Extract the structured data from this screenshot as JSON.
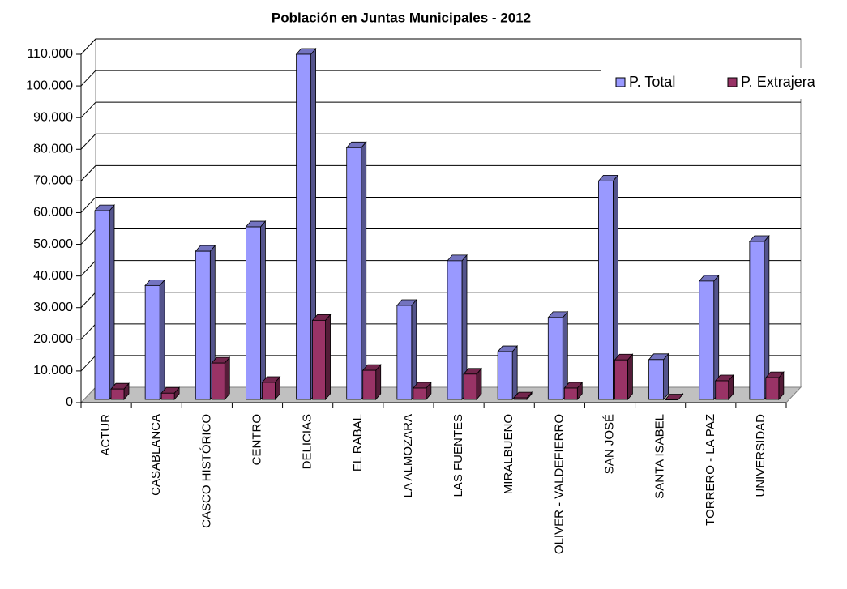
{
  "chart_data": {
    "type": "bar3d",
    "title": "Población en Juntas Municipales - 2012",
    "categories": [
      "ACTUR",
      "CASABLANCA",
      "CASCO HISTÓRICO",
      "CENTRO",
      "DELICIAS",
      "EL RABAL",
      "LA ALMOZARA",
      "LAS FUENTES",
      "MIRALBUENO",
      "OLIVER - VALDEFIERRO",
      "SAN JOSÉ",
      "SANTA ISABEL",
      "TORRERO - LA PAZ",
      "UNIVERSIDAD"
    ],
    "series": [
      {
        "name": "P. Total",
        "color": "#9999ff",
        "values": [
          60600,
          37000,
          47800,
          55500,
          110000,
          80500,
          30700,
          44800,
          16100,
          26900,
          70000,
          13600,
          38400,
          50900
        ]
      },
      {
        "name": "P. Extrajera",
        "color": "#993366",
        "values": [
          4300,
          3000,
          12500,
          6400,
          26000,
          10200,
          4600,
          9000,
          1500,
          4600,
          13500,
          900,
          6900,
          7900
        ]
      }
    ],
    "ylim": [
      0,
      110000
    ],
    "yticks": [
      0,
      {
        "value": 10000,
        "label": "10.000"
      },
      {
        "value": 20000,
        "label": "20.000"
      },
      {
        "value": 30000,
        "label": "30.000"
      },
      {
        "value": 40000,
        "label": "40.000"
      },
      {
        "value": 50000,
        "label": "50.000"
      },
      {
        "value": 60000,
        "label": "60.000"
      },
      {
        "value": 70000,
        "label": "70.000"
      },
      {
        "value": 80000,
        "label": "80.000"
      },
      {
        "value": 90000,
        "label": "90.000"
      },
      {
        "value": 100000,
        "label": "100.000"
      },
      {
        "value": 110000,
        "label": "110.000"
      }
    ],
    "grid": true,
    "legend": "top-right"
  }
}
